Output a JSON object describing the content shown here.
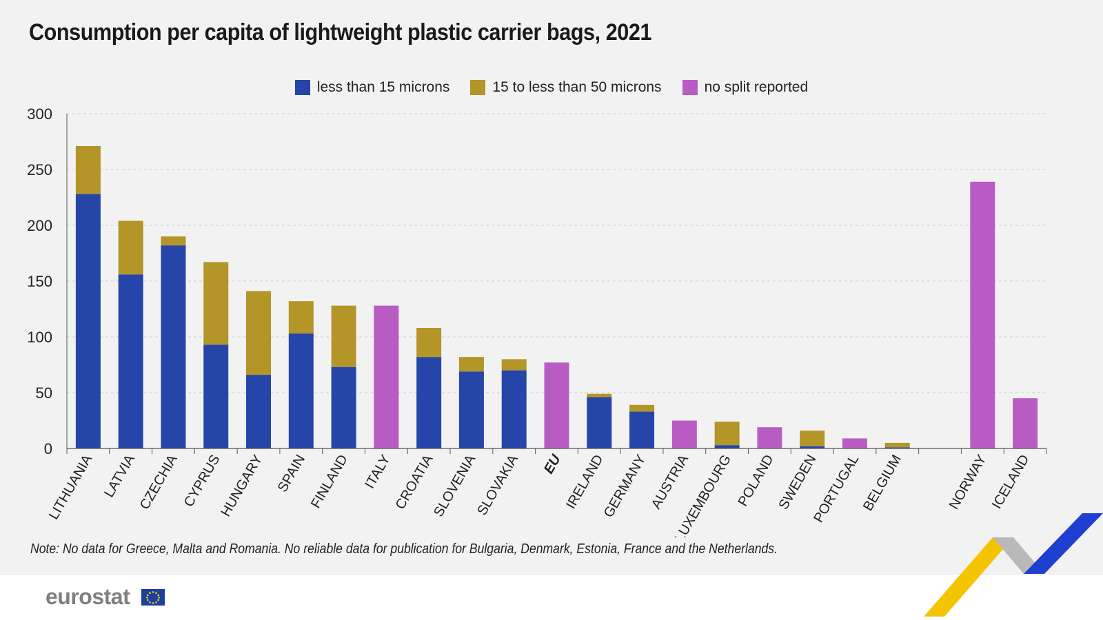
{
  "title": "Consumption per capita of lightweight plastic carrier bags, 2021",
  "note": "Note: No data for Greece, Malta and Romania. No reliable data for publication for Bulgaria, Denmark, Estonia, France and the Netherlands.",
  "logo": "eurostat",
  "colors": {
    "blue": "#2645a9",
    "gold": "#b39528",
    "magenta": "#b85cc4",
    "grid": "#cfcfcf",
    "axis": "#555555"
  },
  "chart_data": {
    "type": "bar",
    "stacked": true,
    "title": "Consumption per capita of lightweight plastic carrier bags, 2021",
    "xlabel": "",
    "ylabel": "",
    "ylim": [
      0,
      300
    ],
    "yticks": [
      0,
      50,
      100,
      150,
      200,
      250,
      300
    ],
    "grid": true,
    "legend_position": "top-center",
    "categories": [
      "LITHUANIA",
      "LATVIA",
      "CZECHIA",
      "CYPRUS",
      "HUNGARY",
      "SPAIN",
      "FINLAND",
      "ITALY",
      "CROATIA",
      "SLOVENIA",
      "SLOVAKIA",
      "EU",
      "IRELAND",
      "GERMANY",
      "AUSTRIA",
      "LUXEMBOURG",
      "POLAND",
      "SWEDEN",
      "PORTUGAL",
      "BELGIUM",
      "",
      "NORWAY",
      "ICELAND"
    ],
    "bold_categories": [
      "EU"
    ],
    "series": [
      {
        "name": "less than 15 microns",
        "color": "#2645a9",
        "values": [
          228,
          156,
          182,
          93,
          66,
          103,
          73,
          0,
          82,
          69,
          70,
          0,
          46,
          33,
          0,
          3,
          0,
          2,
          0,
          1,
          0,
          0,
          0
        ]
      },
      {
        "name": "15 to less than 50 microns",
        "color": "#b39528",
        "values": [
          43,
          48,
          8,
          74,
          75,
          29,
          55,
          0,
          26,
          13,
          10,
          0,
          3,
          6,
          0,
          21,
          0,
          14,
          0,
          4,
          0,
          0,
          0
        ]
      },
      {
        "name": "no split reported",
        "color": "#b85cc4",
        "values": [
          0,
          0,
          0,
          0,
          0,
          0,
          0,
          128,
          0,
          0,
          0,
          77,
          0,
          0,
          25,
          0,
          19,
          0,
          9,
          0,
          0,
          239,
          45
        ]
      }
    ]
  }
}
